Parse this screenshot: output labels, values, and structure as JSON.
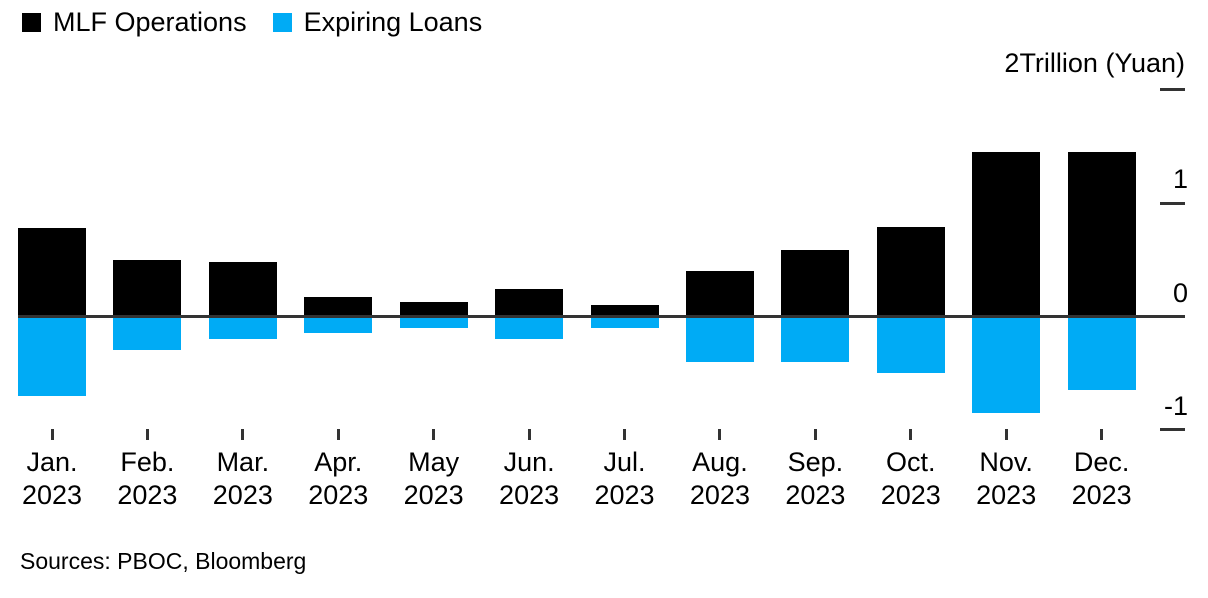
{
  "legend": [
    {
      "name": "MLF Operations",
      "label": "MLF Operations",
      "color": "#000000"
    },
    {
      "name": "Expiring Loans",
      "label": "Expiring Loans",
      "color": "#00abf5"
    }
  ],
  "axis": {
    "unit_label": "2Trillion (Yuan)",
    "y_tick_values": [
      2,
      1,
      0,
      -1
    ],
    "y_tick_labels": [
      "",
      "1",
      "0",
      "-1"
    ]
  },
  "source": "Sources: PBOC, Bloomberg",
  "colors": {
    "mlf_bar": "#000000",
    "expiring_bar": "#00abf5",
    "axis_line": "#333333",
    "text": "#000000"
  },
  "chart_data": {
    "type": "bar",
    "title": "",
    "categories": [
      "Jan. 2023",
      "Feb. 2023",
      "Mar. 2023",
      "Apr. 2023",
      "May 2023",
      "Jun. 2023",
      "Jul. 2023",
      "Aug. 2023",
      "Sep. 2023",
      "Oct. 2023",
      "Nov. 2023",
      "Dec. 2023"
    ],
    "series": [
      {
        "name": "MLF Operations",
        "color": "#000000",
        "values": [
          0.78,
          0.5,
          0.48,
          0.17,
          0.125,
          0.24,
          0.1,
          0.4,
          0.59,
          0.79,
          1.45,
          1.45
        ]
      },
      {
        "name": "Expiring Loans",
        "color": "#00abf5",
        "values": [
          -0.7,
          -0.3,
          -0.2,
          -0.15,
          -0.1,
          -0.2,
          -0.1,
          -0.4,
          -0.4,
          -0.5,
          -0.85,
          -0.65
        ]
      }
    ],
    "xlabel": "",
    "ylabel": "2Trillion (Yuan)",
    "ylim": [
      -1.3,
      2.2
    ],
    "y_ticks": [
      2,
      1,
      0,
      -1
    ],
    "grid": false,
    "legend_position": "top-left",
    "source_note": "Sources: PBOC, Bloomberg"
  }
}
